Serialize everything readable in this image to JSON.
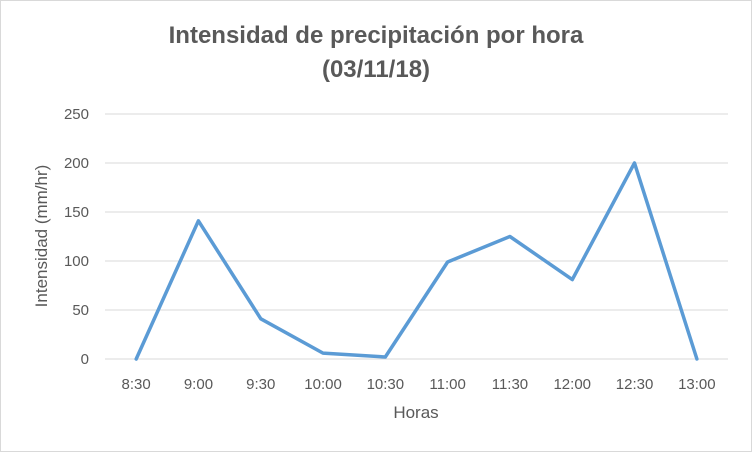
{
  "chart_data": {
    "type": "line",
    "title": [
      "Intensidad de precipitación por hora",
      "(03/11/18)"
    ],
    "xlabel": "Horas",
    "ylabel": "Intensidad (mm/hr)",
    "categories": [
      "8:30",
      "9:00",
      "9:30",
      "10:00",
      "10:30",
      "11:00",
      "11:30",
      "12:00",
      "12:30",
      "13:00"
    ],
    "series": [
      {
        "values": [
          0,
          141,
          41,
          6,
          2,
          99,
          125,
          81,
          200,
          0
        ]
      }
    ],
    "ylim": [
      0,
      250
    ],
    "yticks": [
      0,
      50,
      100,
      150,
      200,
      250
    ],
    "grid": true,
    "legend": "none",
    "colors": {
      "line": "#5b9bd5",
      "grid": "#d9d9d9",
      "text": "#595959"
    }
  }
}
